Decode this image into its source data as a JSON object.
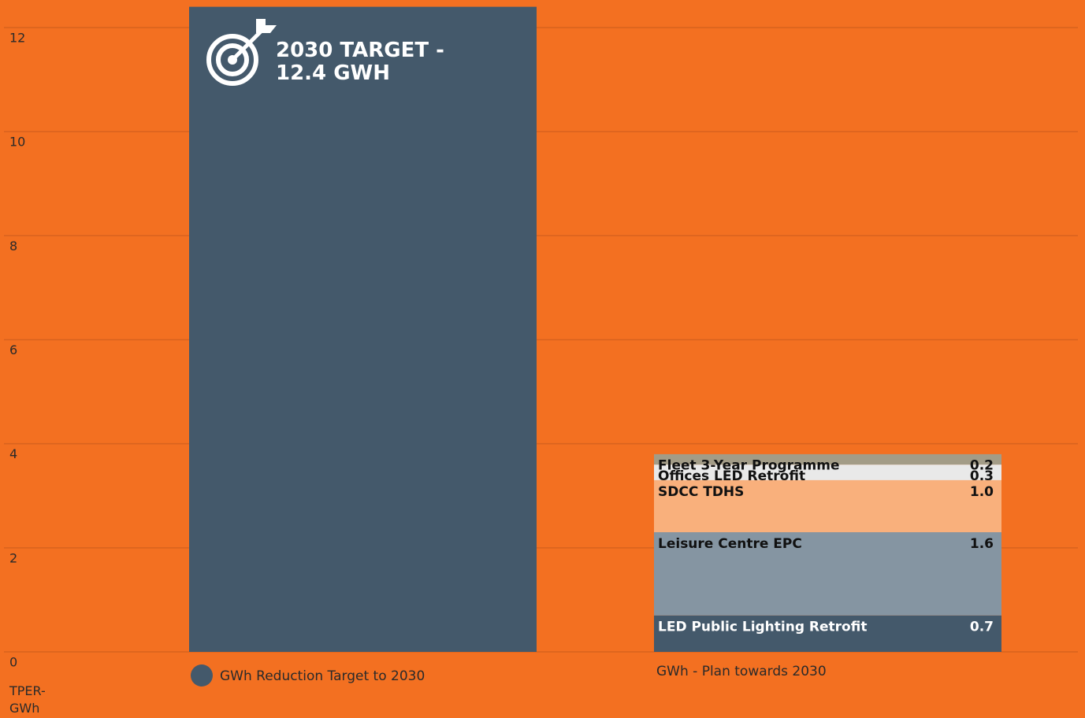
{
  "chart_data": {
    "type": "stacked_bar",
    "categories": [
      "GWh Reduction Target to 2030",
      "GWh - Plan towards 2030"
    ],
    "target_value": 12.4,
    "target_color": "#44596b",
    "annotation": "2030 TARGET - 12.4 GWH",
    "series": [
      {
        "name": "LED Public Lighting Retrofit",
        "color": "#44596b",
        "values": [
          null,
          0.7
        ],
        "value_labels": [
          null,
          "0.7"
        ]
      },
      {
        "name": "Leisure Centre EPC",
        "color": "#8595a2",
        "values": [
          null,
          1.6
        ],
        "value_labels": [
          null,
          "1.6"
        ]
      },
      {
        "name": "SDCC TDHS",
        "color": "#f9b07c",
        "values": [
          null,
          1.0
        ],
        "value_labels": [
          null,
          "1.0"
        ]
      },
      {
        "name": "Offices LED Retrofit",
        "color": "#e9e9e9",
        "values": [
          null,
          0.3
        ],
        "value_labels": [
          null,
          "0.3"
        ]
      },
      {
        "name": "Fleet 3-Year Programme",
        "color": "#a39c87",
        "values": [
          null,
          0.2
        ],
        "value_labels": [
          null,
          "0.2"
        ]
      }
    ],
    "y_label": "TPER-GWh",
    "ylim": [
      0,
      12.5
    ],
    "yticks": [
      0,
      2,
      4,
      6,
      8,
      10,
      12
    ],
    "grid": true,
    "background": "#f37021"
  }
}
